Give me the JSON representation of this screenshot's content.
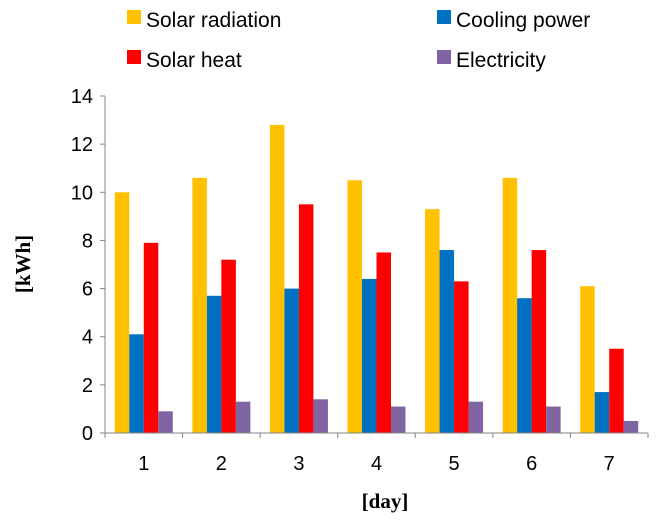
{
  "chart_data": {
    "type": "bar",
    "categories": [
      "1",
      "2",
      "3",
      "4",
      "5",
      "6",
      "7"
    ],
    "series": [
      {
        "name": "Solar radiation",
        "color": "#FFC000",
        "values": [
          10.0,
          10.6,
          12.8,
          10.5,
          9.3,
          10.6,
          6.1
        ]
      },
      {
        "name": "Cooling power",
        "color": "#0070C0",
        "values": [
          4.1,
          5.7,
          6.0,
          6.4,
          7.6,
          5.6,
          1.7
        ]
      },
      {
        "name": "Solar heat",
        "color": "#FF0000",
        "values": [
          7.9,
          7.2,
          9.5,
          7.5,
          6.3,
          7.6,
          3.5
        ]
      },
      {
        "name": "Electricity",
        "color": "#8064A2",
        "values": [
          0.9,
          1.3,
          1.4,
          1.1,
          1.3,
          1.1,
          0.5
        ]
      }
    ],
    "xlabel": "[day]",
    "ylabel": "[kWh]",
    "ylim": [
      0,
      14
    ],
    "yticks": [
      0,
      2,
      4,
      6,
      8,
      10,
      12,
      14
    ],
    "grid": false,
    "legend_position": "top"
  }
}
